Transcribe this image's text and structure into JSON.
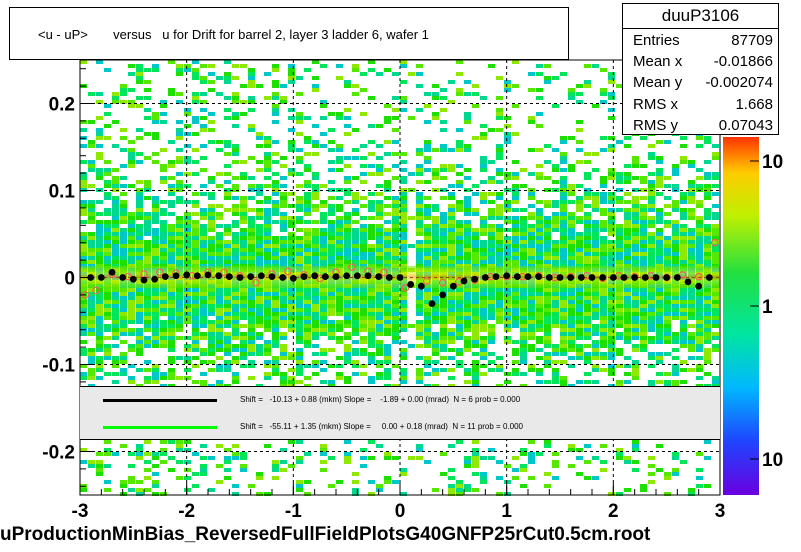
{
  "title": "<u - uP>       versus   u for Drift for barrel 2, layer 3 ladder 6, wafer 1",
  "stats": {
    "name": "duuP3106",
    "rows": [
      {
        "key": "Entries",
        "value": "87709"
      },
      {
        "key": "Mean x",
        "value": "-0.01866"
      },
      {
        "key": "Mean y",
        "value": "-0.002074"
      },
      {
        "key": "RMS x",
        "value": "1.668"
      },
      {
        "key": "RMS y",
        "value": "0.07043"
      }
    ]
  },
  "legend": [
    {
      "color": "#000000",
      "text": "Shift =   -10.13 + 0.88 (mkm) Slope =    -1.89 + 0.00 (mrad)  N = 6 prob = 0.000"
    },
    {
      "color": "#00ff00",
      "text": "Shift =   -55.11 + 1.35 (mkm) Slope =     0.00 + 0.18 (mrad)  N = 11 prob = 0.000"
    }
  ],
  "footer": "uProductionMinBias_ReversedFullFieldPlotsG40GNFP25rCut0.5cm.root",
  "chart_data": {
    "type": "heatmap",
    "title": "<u - uP>       versus   u for Drift for barrel 2, layer 3 ladder 6, wafer 1",
    "xlim": [
      -3,
      3
    ],
    "ylim": [
      -0.25,
      0.25
    ],
    "x_ticks": [
      "-3",
      "-2",
      "-1",
      "0",
      "1",
      "2",
      "3"
    ],
    "y_ticks": [
      "-0.2",
      "-0.1",
      "0",
      "0.1",
      "0.2"
    ],
    "z_scale": "log",
    "z_ticks": [
      "10",
      "1",
      "10"
    ],
    "grid": true,
    "profile_black": {
      "x": [
        -2.9,
        -2.8,
        -2.7,
        -2.6,
        -2.5,
        -2.4,
        -2.3,
        -2.2,
        -2.1,
        -2.0,
        -1.9,
        -1.8,
        -1.7,
        -1.6,
        -1.5,
        -1.4,
        -1.3,
        -1.2,
        -1.1,
        -1.0,
        -0.9,
        -0.8,
        -0.7,
        -0.6,
        -0.5,
        -0.4,
        -0.3,
        -0.2,
        -0.1,
        0.0,
        0.1,
        0.2,
        0.3,
        0.4,
        0.5,
        0.6,
        0.7,
        0.8,
        0.9,
        1.0,
        1.1,
        1.2,
        1.3,
        1.4,
        1.5,
        1.6,
        1.7,
        1.8,
        1.9,
        2.0,
        2.1,
        2.2,
        2.3,
        2.4,
        2.5,
        2.6,
        2.7,
        2.8,
        2.9
      ],
      "y": [
        0.0,
        0.0,
        0.006,
        0.0,
        -0.002,
        -0.003,
        -0.002,
        0.001,
        0.002,
        0.003,
        0.002,
        0.003,
        0.002,
        0.001,
        0.0,
        0.001,
        0.002,
        0.001,
        0.0,
        -0.001,
        0.001,
        0.002,
        0.001,
        0.001,
        0.002,
        0.002,
        0.002,
        0.001,
        0.0,
        0.0,
        -0.008,
        -0.01,
        -0.03,
        -0.02,
        -0.01,
        -0.004,
        -0.002,
        0.0,
        0.001,
        0.002,
        0.001,
        0.001,
        0.001,
        0.0,
        0.0,
        0.0,
        0.0,
        0.0,
        0.0,
        0.0,
        0.0,
        0.0,
        0.0,
        0.0,
        0.0,
        0.0,
        -0.005,
        -0.01,
        0.0
      ]
    },
    "profile_red": {
      "x": [
        -2.95,
        -2.85,
        -2.7,
        -2.55,
        -2.4,
        -2.25,
        -2.1,
        -1.95,
        -1.8,
        -1.65,
        -1.5,
        -1.35,
        -1.2,
        -1.05,
        -0.9,
        -0.75,
        -0.6,
        -0.45,
        -0.3,
        -0.15,
        0.05,
        0.25,
        0.4,
        0.55,
        0.7,
        0.85,
        1.0,
        1.15,
        1.3,
        1.45,
        1.6,
        1.75,
        1.9,
        2.05,
        2.2,
        2.35,
        2.5,
        2.65,
        2.8,
        2.95
      ],
      "y": [
        -0.02,
        -0.015,
        0.004,
        0.001,
        0.004,
        0.006,
        0.005,
        0.002,
        0.006,
        0.006,
        0.002,
        -0.006,
        0.004,
        0.007,
        0.003,
        -0.001,
        0.006,
        0.012,
        0.007,
        0.006,
        -0.012,
        -0.004,
        -0.006,
        -0.005,
        -0.003,
        0.001,
        0.001,
        0.001,
        0.002,
        0.0,
        0.001,
        0.002,
        -0.001,
        0.002,
        0.001,
        0.002,
        0.0,
        0.003,
        0.001,
        0.04
      ]
    }
  }
}
